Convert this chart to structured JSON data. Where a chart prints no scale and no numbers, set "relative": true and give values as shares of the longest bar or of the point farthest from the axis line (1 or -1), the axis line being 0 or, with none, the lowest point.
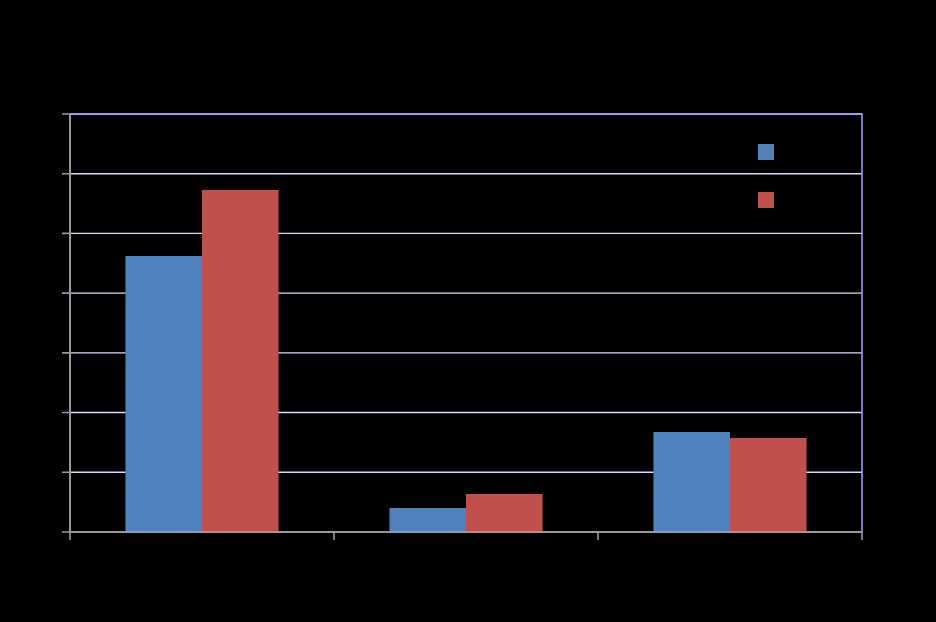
{
  "chart_data": {
    "type": "bar",
    "relative": true,
    "categories": [
      null,
      null,
      null
    ],
    "series": [
      {
        "color": "#4f81bd",
        "values": [
          0.807,
          0.07,
          0.292
        ]
      },
      {
        "color": "#c0504d",
        "values": [
          1,
          0.111,
          0.275
        ]
      }
    ],
    "grid": "y"
  }
}
